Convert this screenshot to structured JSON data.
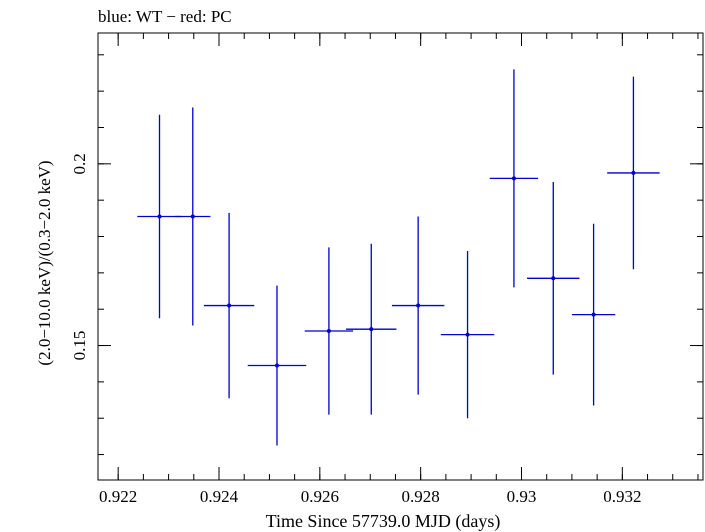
{
  "chart_data": {
    "type": "scatter",
    "title": "blue: WT − red: PC",
    "xlabel": "Time Since 57739.0 MJD (days)",
    "ylabel": "(2.0−10.0 keV)/(0.3−2.0 keV)",
    "xlim": [
      0.9216,
      0.9336
    ],
    "ylim": [
      0.113,
      0.236
    ],
    "x_ticks": [
      0.922,
      0.924,
      0.926,
      0.928,
      0.93,
      0.932
    ],
    "x_tick_labels": [
      "0.922",
      "0.924",
      "0.926",
      "0.928",
      "0.93",
      "0.932"
    ],
    "y_ticks": [
      0.15,
      0.2
    ],
    "y_tick_labels": [
      "0.15",
      "0.2"
    ],
    "x_minor_step": 0.0005,
    "y_minor_step": 0.01,
    "series": [
      {
        "name": "WT",
        "color": "#0000cc",
        "points": [
          {
            "x": 0.92282,
            "xerr": 0.00044,
            "y": 0.1855,
            "yerr": 0.028
          },
          {
            "x": 0.92348,
            "xerr": 0.00035,
            "y": 0.1855,
            "yerr": 0.03
          },
          {
            "x": 0.9242,
            "xerr": 0.0005,
            "y": 0.161,
            "yerr": 0.0255
          },
          {
            "x": 0.92515,
            "xerr": 0.00058,
            "y": 0.1445,
            "yerr": 0.022
          },
          {
            "x": 0.92618,
            "xerr": 0.00048,
            "y": 0.154,
            "yerr": 0.023
          },
          {
            "x": 0.92702,
            "xerr": 0.0005,
            "y": 0.1545,
            "yerr": 0.0235
          },
          {
            "x": 0.92795,
            "xerr": 0.00052,
            "y": 0.161,
            "yerr": 0.0245
          },
          {
            "x": 0.92893,
            "xerr": 0.00053,
            "y": 0.153,
            "yerr": 0.023
          },
          {
            "x": 0.92985,
            "xerr": 0.00048,
            "y": 0.196,
            "yerr": 0.03
          },
          {
            "x": 0.93063,
            "xerr": 0.00052,
            "y": 0.1685,
            "yerr": 0.0265
          },
          {
            "x": 0.93143,
            "xerr": 0.00043,
            "y": 0.1585,
            "yerr": 0.025
          },
          {
            "x": 0.93222,
            "xerr": 0.00052,
            "y": 0.1975,
            "yerr": 0.0265
          }
        ]
      }
    ]
  }
}
